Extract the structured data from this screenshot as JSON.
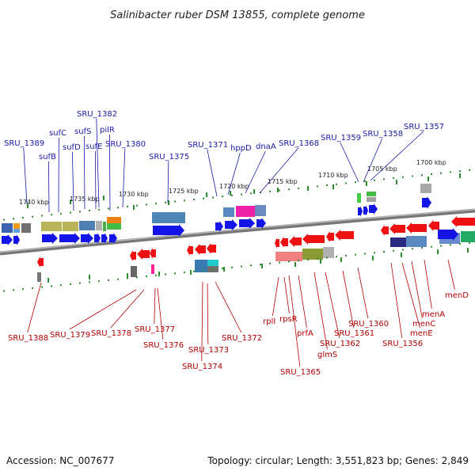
{
  "title": "Salinibacter ruber DSM 13855, complete genome",
  "footer": {
    "accession": "Accession: NC_007677",
    "topology": "Topology: circular; Length: 3,551,823 bp; Genes: 2,849"
  },
  "colors": {
    "blue_gene": "#1414e6",
    "red_gene": "#ee1111",
    "blue_label": "#1a1aa6",
    "red_label": "#b00000",
    "tick": "#2e8b2e",
    "backbone": "#777777"
  },
  "scale_labels": [
    "1740 kbp",
    "1735 kbp",
    "1730 kbp",
    "1725 kbp",
    "1720 kbp",
    "1715 kbp",
    "1710 kbp",
    "1705 kbp",
    "1700 kbp"
  ],
  "top_labels": [
    "SRU_1389",
    "sufB",
    "sufC",
    "sufD",
    "sufS",
    "sufE",
    "SRU_1382",
    "pilR",
    "SRU_1380",
    "SRU_1375",
    "SRU_1371",
    "hppD",
    "dnaA",
    "SRU_1368",
    "SRU_1359",
    "SRU_1358",
    "SRU_1357"
  ],
  "bottom_labels": [
    "SRU_1388",
    "SRU_1379",
    "SRU_1378",
    "SRU_1377",
    "SRU_1376",
    "SRU_1374",
    "SRU_1373",
    "SRU_1372",
    "rplI",
    "rpsR",
    "SRU_1365",
    "prfA",
    "glmS",
    "SRU_1362",
    "SRU_1361",
    "SRU_1360",
    "SRU_1356",
    "menE",
    "menC",
    "menA",
    "menD"
  ]
}
